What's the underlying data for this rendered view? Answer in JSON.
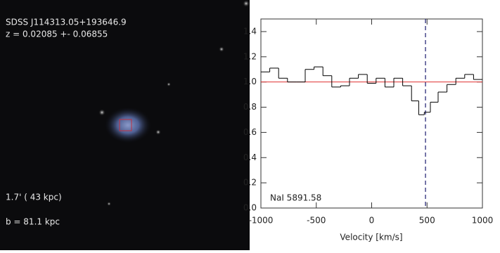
{
  "image": {
    "title": "SDSS J114313.05+193646.9",
    "redshift": "z = 0.02085 +- 0.06855",
    "scale": "1.7' ( 43 kpc)",
    "impact": "b = 81.1 kpc"
  },
  "chart_data": {
    "type": "step",
    "x_label": "Velocity [km/s]",
    "annotation": "NaI 5891.58",
    "x": [
      -960,
      -880,
      -800,
      -720,
      -640,
      -560,
      -480,
      -400,
      -320,
      -240,
      -160,
      -80,
      0,
      80,
      160,
      240,
      320,
      400,
      450,
      500,
      560,
      640,
      720,
      800,
      880,
      960
    ],
    "values": [
      1.08,
      1.11,
      1.03,
      1.0,
      1.0,
      1.1,
      1.12,
      1.05,
      0.96,
      0.97,
      1.03,
      1.06,
      0.99,
      1.03,
      0.96,
      1.03,
      0.97,
      0.85,
      0.74,
      0.76,
      0.84,
      0.92,
      0.98,
      1.03,
      1.06,
      1.02
    ],
    "color": "#000000",
    "xlim": [
      -1000,
      1000
    ],
    "xticks": [
      -1000,
      -500,
      0,
      500,
      1000
    ],
    "ylim": [
      0,
      1.5
    ],
    "yticks": [
      {
        "value": 0,
        "label": "0.0"
      },
      0.2,
      0.4,
      0.6,
      0.8,
      {
        "value": 1,
        "label": "1.0"
      },
      1.2,
      1.4
    ],
    "reference_y": 1,
    "reference_color": "#e03030",
    "marker_x": 486,
    "marker_color": "#1a1a6e"
  }
}
